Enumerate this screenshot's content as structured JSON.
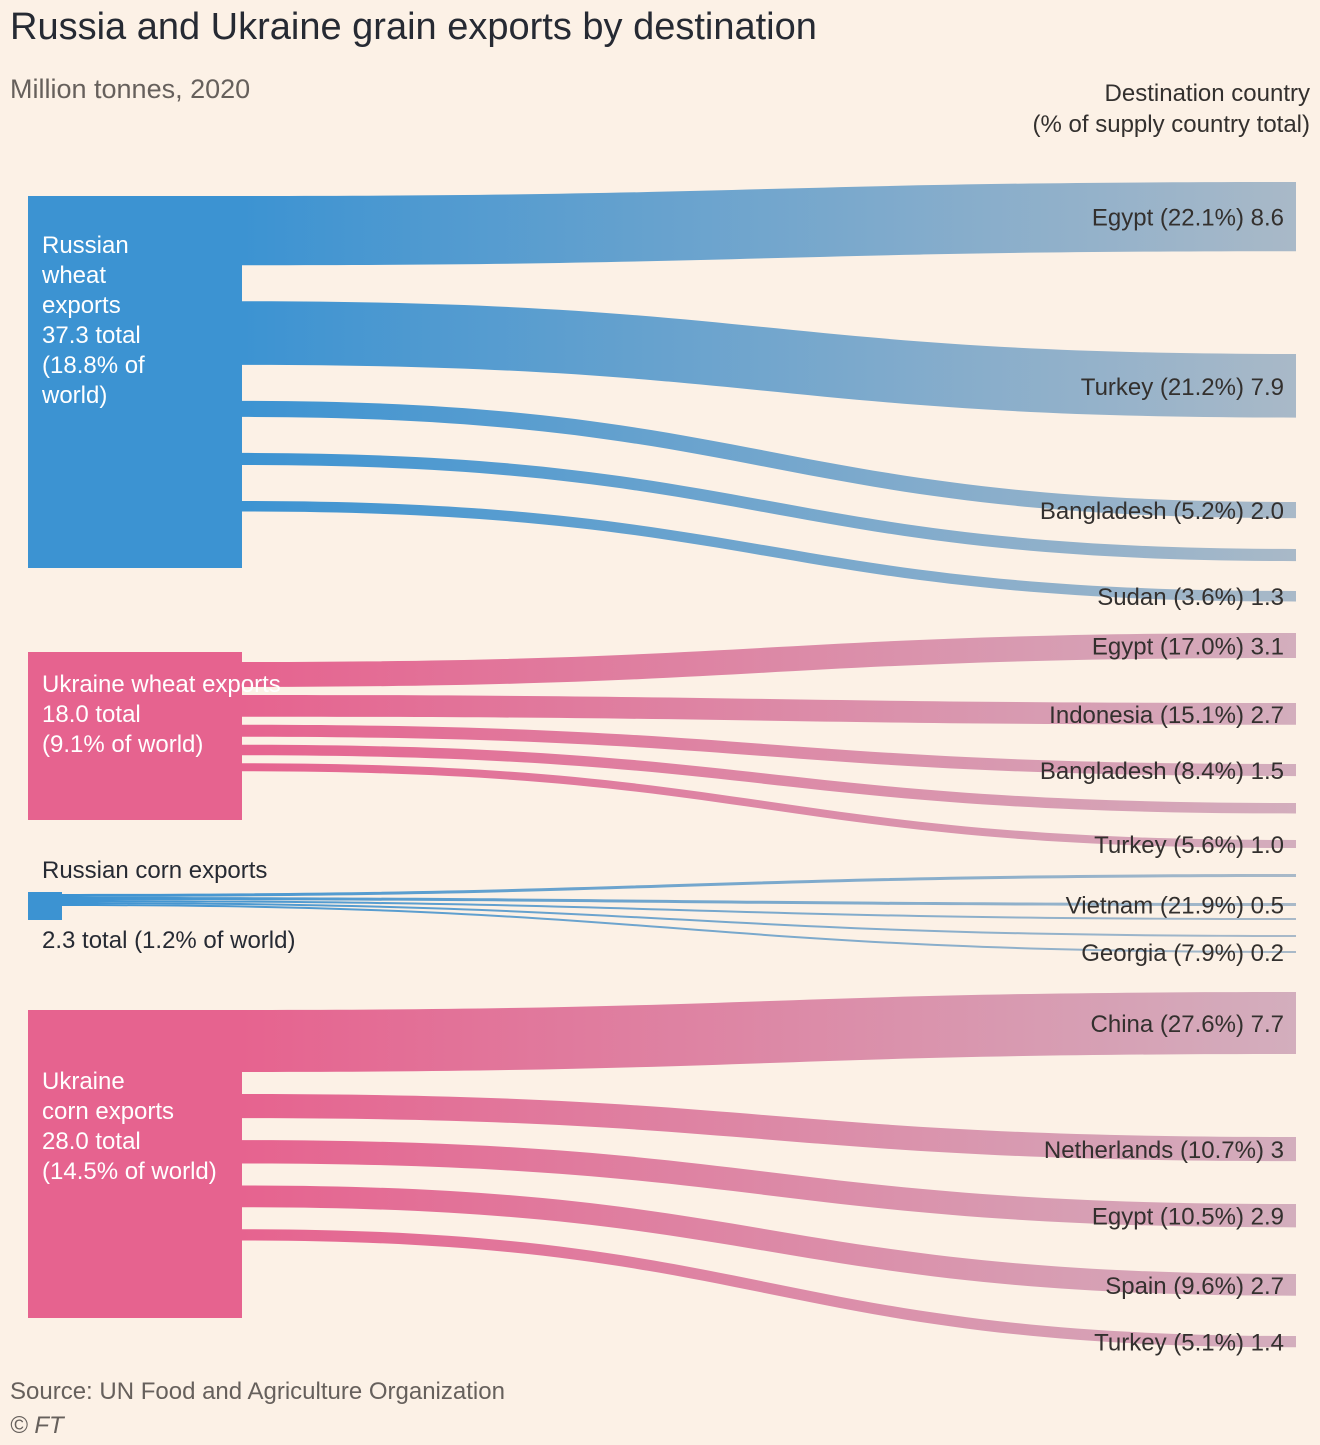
{
  "header": {
    "title": "Russia and Ukraine grain exports by destination",
    "subtitle": "Million tonnes, 2020",
    "dest_line1": "Destination country",
    "dest_line2": "(% of supply country total)"
  },
  "footer": {
    "source": "Source: UN Food and Agriculture Organization",
    "copyright": "© FT"
  },
  "colors": {
    "background": "#fcf1e6",
    "russia_start": "#3c93d2",
    "russia_end": "#a9b9c8",
    "ukraine_start": "#e6638f",
    "ukraine_end": "#d3aebd"
  },
  "chart_data": {
    "type": "sankey",
    "title": "Russia and Ukraine grain exports by destination",
    "units": "Million tonnes, 2020",
    "sources": [
      {
        "id": "russian-wheat",
        "label": [
          "Russian",
          "wheat",
          "exports",
          "37.3 total",
          "(18.8% of",
          "world)"
        ],
        "total": 37.3,
        "world_share": "18.8%",
        "palette": "russia",
        "flows": [
          {
            "label": "Egypt (22.1%) 8.6",
            "country": "Egypt",
            "share": 22.1,
            "value": 8.6
          },
          {
            "label": "Turkey (21.2%) 7.9",
            "country": "Turkey",
            "share": 21.2,
            "value": 7.9
          },
          {
            "label": "Bangladesh (5.2%) 2.0",
            "country": "Bangladesh",
            "share": 5.2,
            "value": 2.0
          },
          {
            "label": "",
            "country": "",
            "value": 1.5
          },
          {
            "label": "Sudan (3.6%) 1.3",
            "country": "Sudan",
            "share": 3.6,
            "value": 1.3
          }
        ]
      },
      {
        "id": "ukraine-wheat",
        "label": [
          "Ukraine wheat exports",
          "18.0 total",
          "(9.1% of world)"
        ],
        "total": 18.0,
        "world_share": "9.1%",
        "palette": "ukraine",
        "flows": [
          {
            "label": "Egypt (17.0%) 3.1",
            "country": "Egypt",
            "share": 17.0,
            "value": 3.1
          },
          {
            "label": "Indonesia (15.1%) 2.7",
            "country": "Indonesia",
            "share": 15.1,
            "value": 2.7
          },
          {
            "label": "Bangladesh (8.4%) 1.5",
            "country": "Bangladesh",
            "share": 8.4,
            "value": 1.5
          },
          {
            "label": "",
            "country": "",
            "value": 1.3
          },
          {
            "label": "Turkey (5.6%) 1.0",
            "country": "Turkey",
            "share": 5.6,
            "value": 1.0
          }
        ]
      },
      {
        "id": "russian-corn",
        "label": [
          "Russian corn exports"
        ],
        "label_below": "2.3 total (1.2% of world)",
        "total": 2.3,
        "world_share": "1.2%",
        "palette": "russia",
        "flows": [
          {
            "label": "",
            "country": "",
            "value": 0.5
          },
          {
            "label": "Vietnam (21.9%) 0.5",
            "country": "Vietnam",
            "share": 21.9,
            "value": 0.5
          },
          {
            "label": "",
            "country": "",
            "value": 0.3
          },
          {
            "label": "",
            "country": "",
            "value": 0.2
          },
          {
            "label": "Georgia (7.9%) 0.2",
            "country": "Georgia",
            "share": 7.9,
            "value": 0.2
          }
        ]
      },
      {
        "id": "ukraine-corn",
        "label": [
          "Ukraine",
          "corn exports",
          "28.0 total",
          "(14.5% of world)"
        ],
        "total": 28.0,
        "world_share": "14.5%",
        "palette": "ukraine",
        "flows": [
          {
            "label": "China (27.6%) 7.7",
            "country": "China",
            "share": 27.6,
            "value": 7.7
          },
          {
            "label": "Netherlands (10.7%) 3",
            "country": "Netherlands",
            "share": 10.7,
            "value": 3.0
          },
          {
            "label": "Egypt (10.5%) 2.9",
            "country": "Egypt",
            "share": 10.5,
            "value": 2.9
          },
          {
            "label": "Spain (9.6%) 2.7",
            "country": "Spain",
            "share": 9.6,
            "value": 2.7
          },
          {
            "label": "Turkey (5.1%) 1.4",
            "country": "Turkey",
            "share": 5.1,
            "value": 1.4
          }
        ]
      }
    ]
  }
}
